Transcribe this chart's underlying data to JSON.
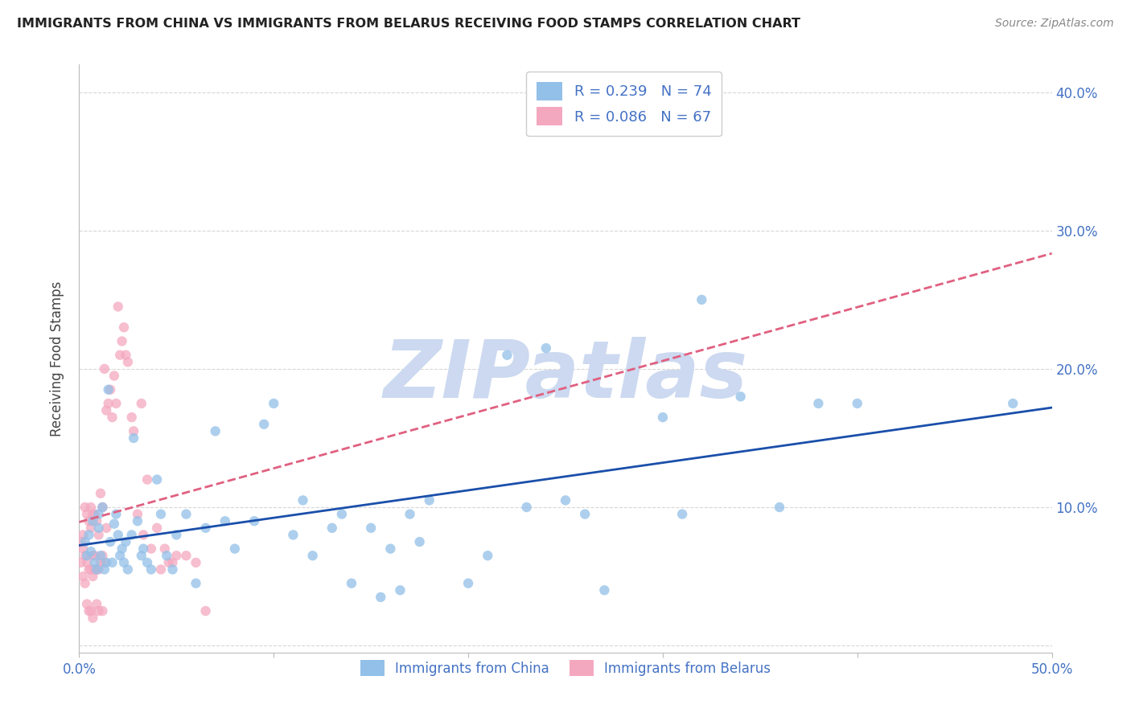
{
  "title": "IMMIGRANTS FROM CHINA VS IMMIGRANTS FROM BELARUS RECEIVING FOOD STAMPS CORRELATION CHART",
  "source": "Source: ZipAtlas.com",
  "ylabel": "Receiving Food Stamps",
  "xlim": [
    0.0,
    0.5
  ],
  "ylim": [
    -0.005,
    0.42
  ],
  "xticks": [
    0.0,
    0.1,
    0.2,
    0.3,
    0.4,
    0.5
  ],
  "xtick_labels": [
    "0.0%",
    "",
    "",
    "",
    "",
    "50.0%"
  ],
  "yticks": [
    0.0,
    0.1,
    0.2,
    0.3,
    0.4
  ],
  "ytick_labels_right": [
    "",
    "10.0%",
    "20.0%",
    "30.0%",
    "40.0%"
  ],
  "legend_china": "R = 0.239   N = 74",
  "legend_belarus": "R = 0.086   N = 67",
  "color_china": "#92c0e8",
  "color_belarus": "#f4a8c0",
  "color_title": "#222222",
  "color_axis_labels": "#4472c4",
  "color_trendline_china": "#1a4faa",
  "color_trendline_belarus": "#e06080",
  "watermark_color": "#ccd9f0",
  "background_color": "#ffffff",
  "grid_color": "#cccccc",
  "marker_size": 80,
  "china_x": [
    0.003,
    0.004,
    0.005,
    0.006,
    0.007,
    0.008,
    0.009,
    0.01,
    0.01,
    0.011,
    0.012,
    0.013,
    0.014,
    0.015,
    0.016,
    0.017,
    0.018,
    0.019,
    0.02,
    0.021,
    0.022,
    0.023,
    0.024,
    0.025,
    0.027,
    0.028,
    0.03,
    0.032,
    0.033,
    0.035,
    0.037,
    0.04,
    0.042,
    0.045,
    0.048,
    0.05,
    0.055,
    0.06,
    0.065,
    0.07,
    0.075,
    0.08,
    0.09,
    0.095,
    0.1,
    0.11,
    0.115,
    0.12,
    0.13,
    0.135,
    0.14,
    0.15,
    0.155,
    0.16,
    0.165,
    0.17,
    0.175,
    0.18,
    0.2,
    0.21,
    0.22,
    0.23,
    0.24,
    0.25,
    0.26,
    0.27,
    0.3,
    0.31,
    0.32,
    0.34,
    0.36,
    0.38,
    0.4,
    0.48
  ],
  "china_y": [
    0.075,
    0.065,
    0.08,
    0.068,
    0.09,
    0.06,
    0.055,
    0.095,
    0.085,
    0.065,
    0.1,
    0.055,
    0.06,
    0.185,
    0.075,
    0.06,
    0.088,
    0.095,
    0.08,
    0.065,
    0.07,
    0.06,
    0.075,
    0.055,
    0.08,
    0.15,
    0.09,
    0.065,
    0.07,
    0.06,
    0.055,
    0.12,
    0.095,
    0.065,
    0.055,
    0.08,
    0.095,
    0.045,
    0.085,
    0.155,
    0.09,
    0.07,
    0.09,
    0.16,
    0.175,
    0.08,
    0.105,
    0.065,
    0.085,
    0.095,
    0.045,
    0.085,
    0.035,
    0.07,
    0.04,
    0.095,
    0.075,
    0.105,
    0.045,
    0.065,
    0.21,
    0.1,
    0.215,
    0.105,
    0.095,
    0.04,
    0.165,
    0.095,
    0.25,
    0.18,
    0.1,
    0.175,
    0.175,
    0.175
  ],
  "belarus_x": [
    0.001,
    0.001,
    0.002,
    0.002,
    0.002,
    0.003,
    0.003,
    0.003,
    0.004,
    0.004,
    0.004,
    0.005,
    0.005,
    0.005,
    0.006,
    0.006,
    0.006,
    0.006,
    0.007,
    0.007,
    0.007,
    0.007,
    0.008,
    0.008,
    0.008,
    0.009,
    0.009,
    0.009,
    0.01,
    0.01,
    0.01,
    0.011,
    0.011,
    0.012,
    0.012,
    0.012,
    0.013,
    0.013,
    0.014,
    0.014,
    0.015,
    0.016,
    0.017,
    0.018,
    0.019,
    0.02,
    0.021,
    0.022,
    0.023,
    0.024,
    0.025,
    0.027,
    0.028,
    0.03,
    0.032,
    0.033,
    0.035,
    0.037,
    0.04,
    0.042,
    0.044,
    0.046,
    0.048,
    0.05,
    0.055,
    0.06,
    0.065
  ],
  "belarus_y": [
    0.075,
    0.06,
    0.08,
    0.07,
    0.05,
    0.1,
    0.065,
    0.045,
    0.095,
    0.06,
    0.03,
    0.09,
    0.055,
    0.025,
    0.085,
    0.1,
    0.055,
    0.025,
    0.05,
    0.095,
    0.065,
    0.02,
    0.055,
    0.095,
    0.065,
    0.09,
    0.055,
    0.03,
    0.08,
    0.055,
    0.025,
    0.11,
    0.06,
    0.1,
    0.065,
    0.025,
    0.2,
    0.06,
    0.17,
    0.085,
    0.175,
    0.185,
    0.165,
    0.195,
    0.175,
    0.245,
    0.21,
    0.22,
    0.23,
    0.21,
    0.205,
    0.165,
    0.155,
    0.095,
    0.175,
    0.08,
    0.12,
    0.07,
    0.085,
    0.055,
    0.07,
    0.06,
    0.06,
    0.065,
    0.065,
    0.06,
    0.025
  ]
}
